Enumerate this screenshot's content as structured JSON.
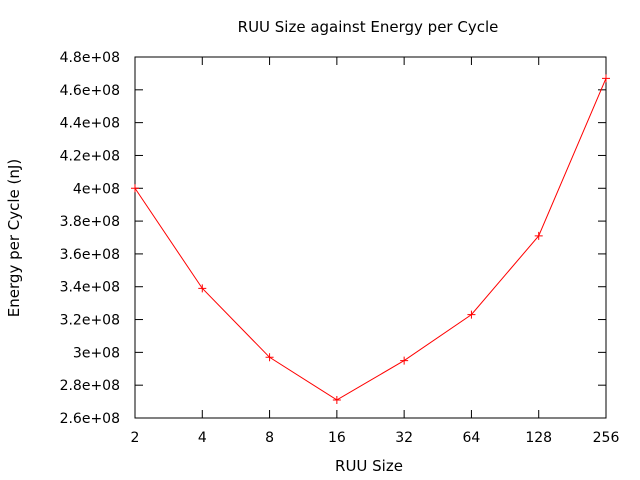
{
  "chart_data": {
    "type": "line",
    "title": "RUU Size against Energy per Cycle",
    "xlabel": "RUU Size",
    "ylabel": "Energy per Cycle (nJ)",
    "x_scale": "log2",
    "categories": [
      "2",
      "4",
      "8",
      "16",
      "32",
      "64",
      "128",
      "256"
    ],
    "y_ticks": [
      "2.6e+08",
      "2.8e+08",
      "3e+08",
      "3.2e+08",
      "3.4e+08",
      "3.6e+08",
      "3.8e+08",
      "4e+08",
      "4.2e+08",
      "4.4e+08",
      "4.6e+08",
      "4.8e+08"
    ],
    "ylim": [
      260000000,
      480000000
    ],
    "grid": false,
    "series": [
      {
        "color": "#ff0000",
        "marker": "plus",
        "x": [
          2,
          4,
          8,
          16,
          32,
          64,
          128,
          256
        ],
        "values": [
          400000000,
          339000000,
          297000000,
          271000000,
          295000000,
          323000000,
          371000000,
          467000000
        ]
      }
    ]
  }
}
